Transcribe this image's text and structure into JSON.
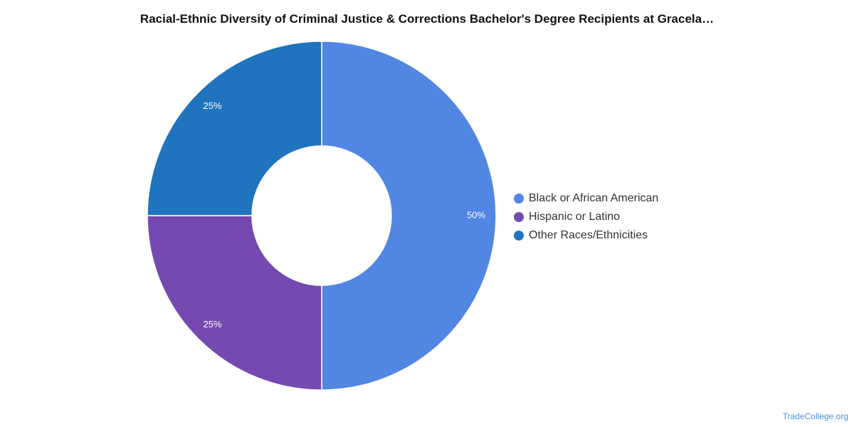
{
  "chart_data": {
    "type": "pie",
    "variant": "donut",
    "title": "Racial-Ethnic Diversity of Criminal Justice & Corrections Bachelor's Degree Recipients at Gracela…",
    "categories": [
      "Black or African American",
      "Hispanic or Latino",
      "Other Races/Ethnicities"
    ],
    "values": [
      50,
      25,
      25
    ],
    "data_labels": [
      "50%",
      "25%",
      "25%"
    ],
    "colors": [
      "#5286e3",
      "#7549b0",
      "#1f74bd"
    ],
    "legend_position": "right"
  },
  "footer": {
    "credit": "TradeCollege.org"
  }
}
